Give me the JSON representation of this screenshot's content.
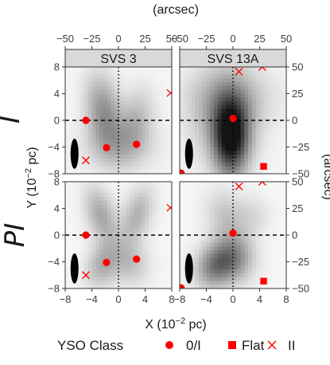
{
  "chart_data": {
    "type": "heatmap",
    "top_axis_label": "(arcsec)",
    "right_axis_label": "(arcsec)",
    "xlabel_main": "X (10",
    "xlabel_sup": "−2",
    "xlabel_end": " pc)",
    "ylabel_main": "Y (10",
    "ylabel_sup": "−2",
    "ylabel_end": " pc)",
    "x_range_pc": [
      -8,
      8
    ],
    "y_range_pc": [
      -8,
      8
    ],
    "x_ticks": [
      "−8",
      "−4",
      "0",
      "4",
      "8"
    ],
    "y_ticks": [
      "8",
      "4",
      "0",
      "−4",
      "−8"
    ],
    "arcsec_ticks_x": [
      "−50",
      "−25",
      "0",
      "25",
      "50"
    ],
    "arcsec_ticks_y": [
      "50",
      "25",
      "0",
      "−25",
      "−50"
    ],
    "arcsec_per_pc": 6.25,
    "columns": [
      "SVS 3",
      "SVS 13A"
    ],
    "rows": [
      "I",
      "PI"
    ],
    "grid": false,
    "reference_lines": {
      "x0": "dotted",
      "y0": "dashed"
    },
    "legend": {
      "title": "YSO Class",
      "position": "bottom",
      "items": [
        {
          "label": "0/I",
          "marker": "circle"
        },
        {
          "label": "Flat",
          "marker": "square"
        },
        {
          "label": "II",
          "marker": "cross"
        }
      ]
    },
    "colors": {
      "marker": "#ff0000",
      "strip_fill": "#d9d9d9",
      "frame": "#333333",
      "beam": "#000000"
    },
    "panels": [
      {
        "row": "I",
        "column": "SVS 3",
        "intensity_blobs": [
          {
            "x": -2.2,
            "y": 1.0,
            "sx": 1.8,
            "sy": 4.0,
            "a": 0.45,
            "rot": 0.15
          },
          {
            "x": 2.5,
            "y": -0.5,
            "sx": 1.8,
            "sy": 3.5,
            "a": 0.28,
            "rot": -0.2
          },
          {
            "x": 0.0,
            "y": -4.0,
            "sx": 4.0,
            "sy": 2.5,
            "a": 0.18,
            "rot": 0.0
          }
        ],
        "sources": [
          {
            "class": "0/I",
            "x": -4.9,
            "y": 0.0
          },
          {
            "class": "0/I",
            "x": -1.8,
            "y": -4.1
          },
          {
            "class": "0/I",
            "x": 2.7,
            "y": -3.6
          },
          {
            "class": "II",
            "x": -4.9,
            "y": -6.0
          },
          {
            "class": "II",
            "x": 7.8,
            "y": 4.1
          }
        ],
        "beam": {
          "x": -6.6,
          "y": -5.0
        }
      },
      {
        "row": "I",
        "column": "SVS 13A",
        "intensity_blobs": [
          {
            "x": -0.3,
            "y": -2.5,
            "sx": 1.8,
            "sy": 4.0,
            "a": 0.95,
            "rot": 0.0
          },
          {
            "x": -1.2,
            "y": 1.0,
            "sx": 3.5,
            "sy": 5.0,
            "a": 0.35,
            "rot": 0.0
          },
          {
            "x": 0.0,
            "y": 3.5,
            "sx": 5.0,
            "sy": 3.0,
            "a": 0.12,
            "rot": 0.0
          }
        ],
        "sources": [
          {
            "class": "0/I",
            "x": 0.0,
            "y": 0.3
          },
          {
            "class": "0/I",
            "x": -7.8,
            "y": -7.9
          },
          {
            "class": "Flat",
            "x": 4.6,
            "y": -6.9
          },
          {
            "class": "II",
            "x": 0.9,
            "y": 7.3
          },
          {
            "class": "II",
            "x": 4.4,
            "y": 8.0
          }
        ],
        "beam": {
          "x": -6.6,
          "y": -5.0
        }
      },
      {
        "row": "PI",
        "column": "SVS 3",
        "intensity_blobs": [
          {
            "x": -2.6,
            "y": 3.0,
            "sx": 1.5,
            "sy": 3.0,
            "a": 0.35,
            "rot": 0.3
          },
          {
            "x": 2.8,
            "y": 3.0,
            "sx": 1.5,
            "sy": 3.0,
            "a": 0.3,
            "rot": -0.3
          },
          {
            "x": -2.5,
            "y": -4.5,
            "sx": 1.6,
            "sy": 2.5,
            "a": 0.3,
            "rot": -0.3
          },
          {
            "x": 1.5,
            "y": -4.0,
            "sx": 2.0,
            "sy": 2.5,
            "a": 0.25,
            "rot": 0.3
          }
        ],
        "sources": [
          {
            "class": "0/I",
            "x": -4.9,
            "y": 0.0
          },
          {
            "class": "0/I",
            "x": -1.8,
            "y": -4.1
          },
          {
            "class": "0/I",
            "x": 2.7,
            "y": -3.6
          },
          {
            "class": "II",
            "x": -4.9,
            "y": -6.0
          },
          {
            "class": "II",
            "x": 7.8,
            "y": 4.1
          }
        ],
        "beam": {
          "x": -6.6,
          "y": -5.0
        }
      },
      {
        "row": "PI",
        "column": "SVS 13A",
        "intensity_blobs": [
          {
            "x": -2.5,
            "y": -4.5,
            "sx": 2.0,
            "sy": 2.5,
            "a": 0.55,
            "rot": -0.5
          },
          {
            "x": 0.5,
            "y": -3.5,
            "sx": 2.0,
            "sy": 2.5,
            "a": 0.35,
            "rot": 0.0
          },
          {
            "x": -1.0,
            "y": 2.5,
            "sx": 2.0,
            "sy": 3.0,
            "a": 0.22,
            "rot": 0.3
          },
          {
            "x": 3.0,
            "y": 3.0,
            "sx": 1.8,
            "sy": 2.0,
            "a": 0.12,
            "rot": 0.0
          }
        ],
        "sources": [
          {
            "class": "0/I",
            "x": 0.0,
            "y": 0.3
          },
          {
            "class": "0/I",
            "x": -7.8,
            "y": -7.9
          },
          {
            "class": "Flat",
            "x": 4.6,
            "y": -6.9
          },
          {
            "class": "II",
            "x": 0.9,
            "y": 7.3
          },
          {
            "class": "II",
            "x": 4.4,
            "y": 8.0
          }
        ],
        "beam": {
          "x": -6.6,
          "y": -5.0
        }
      }
    ]
  }
}
